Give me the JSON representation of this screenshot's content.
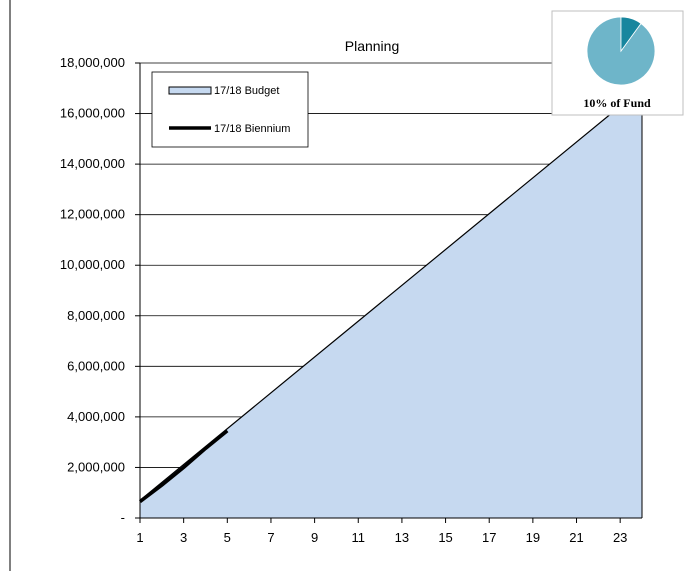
{
  "chart_data": {
    "type": "area",
    "title": "Planning",
    "xlabel": "",
    "ylabel": "",
    "x_tick_labels": [
      "1",
      "3",
      "5",
      "7",
      "9",
      "11",
      "13",
      "15",
      "17",
      "19",
      "21",
      "23"
    ],
    "y_tick_labels": [
      "-",
      "2,000,000",
      "4,000,000",
      "6,000,000",
      "8,000,000",
      "10,000,000",
      "12,000,000",
      "14,000,000",
      "16,000,000",
      "18,000,000"
    ],
    "xlim": [
      1,
      24
    ],
    "ylim": [
      0,
      18000000
    ],
    "grid": "horizontal",
    "legend_position": "top-left",
    "series": [
      {
        "name": "17/18 Budget",
        "style": "area",
        "fill_color": "#c6d9f0",
        "line_color": "#000000",
        "x": [
          1,
          24
        ],
        "values": [
          700000,
          17000000
        ]
      },
      {
        "name": "17/18 Biennium",
        "style": "line",
        "line_color": "#000000",
        "x": [
          1,
          2,
          3,
          4,
          5
        ],
        "values": [
          650000,
          1300000,
          2000000,
          2750000,
          3450000
        ]
      }
    ],
    "inset": {
      "type": "pie",
      "label": "10% of Fund",
      "highlight_fraction": 0.1,
      "main_color": "#6eb5c9",
      "highlight_color": "#17869e"
    }
  }
}
